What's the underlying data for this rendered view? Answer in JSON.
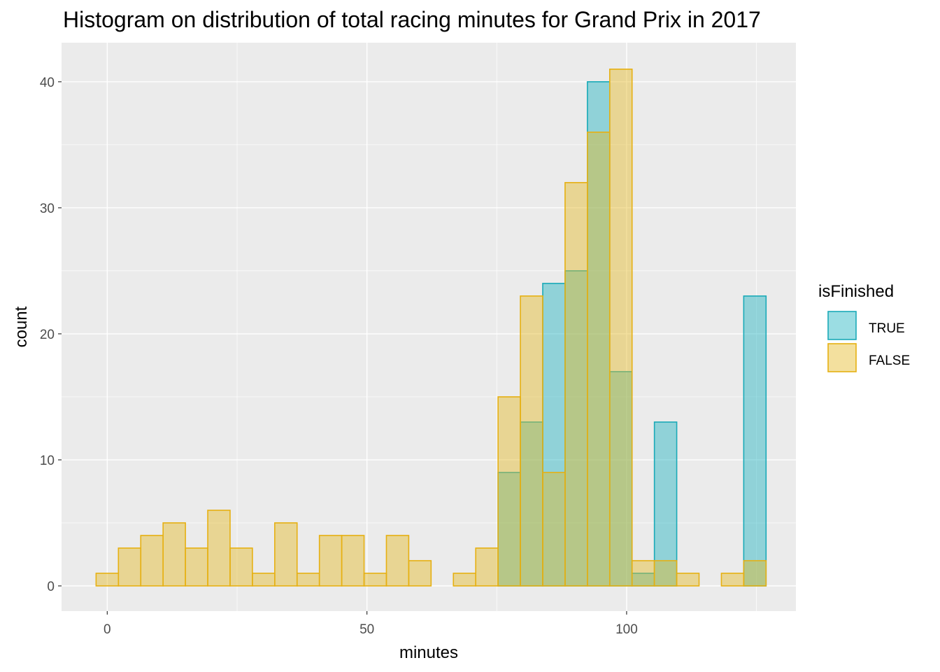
{
  "chart_data": {
    "type": "bar",
    "title": "Histogram on distribution of total racing minutes for Grand Prix in 2017",
    "xlabel": "minutes",
    "ylabel": "count",
    "xlim": [
      -8.8,
      132.6
    ],
    "ylim": [
      -2.0,
      43.1
    ],
    "x_ticks": [
      0,
      50,
      100
    ],
    "y_ticks": [
      0,
      10,
      20,
      30,
      40
    ],
    "bin_width": 4.3,
    "bin_centers": [
      0.0,
      4.3,
      8.6,
      12.9,
      17.2,
      21.5,
      25.8,
      30.1,
      34.4,
      38.7,
      43.0,
      47.3,
      51.6,
      55.9,
      60.2,
      64.5,
      68.8,
      73.1,
      77.4,
      81.7,
      86.0,
      90.3,
      94.6,
      98.9,
      103.2,
      107.5,
      111.8,
      116.1,
      120.4,
      124.7
    ],
    "series": [
      {
        "name": "TRUE",
        "fill": "#22b3c0",
        "stroke": "#1aaab8",
        "values": [
          0,
          0,
          0,
          0,
          0,
          0,
          0,
          0,
          0,
          0,
          0,
          0,
          0,
          0,
          0,
          0,
          0,
          0,
          9,
          13,
          24,
          25,
          40,
          17,
          1,
          13,
          0,
          0,
          0,
          23
        ]
      },
      {
        "name": "FALSE",
        "fill": "#e4bb28",
        "stroke": "#e6b012",
        "values": [
          1,
          3,
          4,
          5,
          3,
          6,
          3,
          1,
          5,
          1,
          4,
          4,
          1,
          4,
          2,
          0,
          1,
          3,
          15,
          23,
          9,
          32,
          36,
          41,
          2,
          2,
          1,
          0,
          1,
          2
        ]
      }
    ],
    "grid": true,
    "legend": {
      "title": "isFinished",
      "position": "right"
    },
    "panel_background": "#ebebeb"
  }
}
